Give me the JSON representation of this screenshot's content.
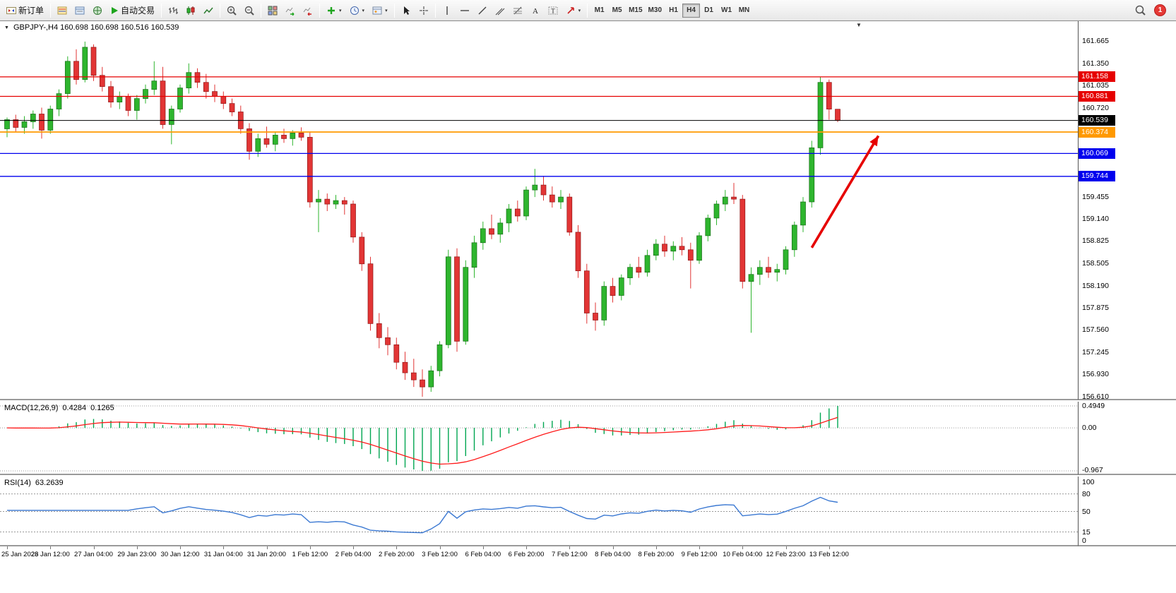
{
  "colors": {
    "bull": "#2eb52e",
    "bull_border": "#166d16",
    "bear": "#e23535",
    "bear_border": "#8f1414",
    "macd_hist": "#00a651",
    "macd_signal": "#ff1a1a",
    "rsi_line": "#3a78d2",
    "accent_red": "#e60000"
  },
  "toolbar": {
    "new_order_label": "新订单",
    "auto_trading_label": "自动交易",
    "timeframes": [
      "M1",
      "M5",
      "M15",
      "M30",
      "H1",
      "H4",
      "D1",
      "W1",
      "MN"
    ],
    "active_timeframe": "H4",
    "notification_count": "1"
  },
  "chart": {
    "title": "GBPJPY-,H4 160.698 160.698 160.516 160.539",
    "price_axis": [
      "161.665",
      "161.350",
      "161.035",
      "160.720",
      "159.455",
      "159.140",
      "158.825",
      "158.505",
      "158.190",
      "157.875",
      "157.560",
      "157.245",
      "156.930",
      "156.610"
    ],
    "hlines": [
      {
        "value": 161.158,
        "label": "161.158",
        "color": "#e60000",
        "width": 1.3
      },
      {
        "value": 160.881,
        "label": "160.881",
        "color": "#e60000",
        "width": 1.3
      },
      {
        "value": 160.539,
        "label": "160.539",
        "color": "#000000",
        "width": 1
      },
      {
        "value": 160.374,
        "label": "160.374",
        "color": "#ff9900",
        "width": 1.8
      },
      {
        "value": 160.069,
        "label": "160.069",
        "color": "#0000ee",
        "width": 1.3
      },
      {
        "value": 159.744,
        "label": "159.744",
        "color": "#0000ee",
        "width": 1.3
      }
    ],
    "arrow": {
      "from_bar": 93,
      "from_price": 158.73,
      "to_bar": 100.7,
      "to_price": 160.32,
      "color": "#e60000"
    }
  },
  "macd": {
    "name": "MACD(12,26,9)",
    "value_main": "0.4284",
    "value_signal": "0.1265",
    "fast": 12,
    "slow": 26,
    "signal": 9,
    "scale_max": 0.4949,
    "scale_min": -0.967,
    "axis_labels": [
      "0.4949",
      "0.00",
      "-0.967"
    ]
  },
  "rsi": {
    "name": "RSI(14)",
    "value": "63.2639",
    "period": 14,
    "levels": [
      80,
      50,
      15
    ],
    "axis_labels": [
      "100",
      "80",
      "50",
      "15",
      "0"
    ]
  },
  "time_axis": {
    "step": 5,
    "labels": [
      "25 Jan 2023",
      "26 Jan 12:00",
      "27 Jan 04:00",
      "29 Jan 23:00",
      "30 Jan 12:00",
      "31 Jan 04:00",
      "31 Jan 20:00",
      "1 Feb 12:00",
      "2 Feb 04:00",
      "2 Feb 20:00",
      "3 Feb 12:00",
      "6 Feb 04:00",
      "6 Feb 20:00",
      "7 Feb 12:00",
      "8 Feb 04:00",
      "8 Feb 20:00",
      "9 Feb 12:00",
      "10 Feb 04:00",
      "12 Feb 23:00",
      "13 Feb 12:00"
    ]
  },
  "chart_data": {
    "type": "candlestick",
    "symbol": "GBPJPY-",
    "timeframe": "H4",
    "ylim": [
      156.56,
      161.95
    ],
    "ohlc": [
      [
        160.42,
        160.58,
        160.3,
        160.55
      ],
      [
        160.55,
        160.62,
        160.38,
        160.44
      ],
      [
        160.44,
        160.6,
        160.35,
        160.52
      ],
      [
        160.52,
        160.68,
        160.42,
        160.63
      ],
      [
        160.63,
        160.72,
        160.28,
        160.4
      ],
      [
        160.4,
        160.75,
        160.35,
        160.7
      ],
      [
        160.7,
        160.98,
        160.6,
        160.92
      ],
      [
        160.92,
        161.45,
        160.85,
        161.38
      ],
      [
        161.38,
        161.55,
        161.05,
        161.12
      ],
      [
        161.12,
        161.66,
        161.08,
        161.58
      ],
      [
        161.58,
        161.62,
        161.1,
        161.18
      ],
      [
        161.18,
        161.3,
        160.95,
        161.02
      ],
      [
        161.02,
        161.1,
        160.72,
        160.8
      ],
      [
        160.8,
        160.95,
        160.7,
        160.88
      ],
      [
        160.88,
        160.92,
        160.6,
        160.68
      ],
      [
        160.68,
        160.9,
        160.55,
        160.85
      ],
      [
        160.85,
        161.05,
        160.78,
        160.98
      ],
      [
        160.98,
        161.38,
        160.9,
        161.1
      ],
      [
        161.1,
        161.3,
        160.42,
        160.48
      ],
      [
        160.48,
        160.75,
        160.2,
        160.7
      ],
      [
        160.7,
        161.05,
        160.65,
        161.0
      ],
      [
        161.0,
        161.35,
        160.92,
        161.22
      ],
      [
        161.22,
        161.28,
        161.0,
        161.08
      ],
      [
        161.08,
        161.2,
        160.85,
        160.95
      ],
      [
        160.95,
        161.05,
        160.8,
        160.88
      ],
      [
        160.88,
        160.95,
        160.7,
        160.78
      ],
      [
        160.78,
        160.85,
        160.6,
        160.66
      ],
      [
        160.66,
        160.75,
        160.35,
        160.42
      ],
      [
        160.42,
        160.5,
        159.98,
        160.1
      ],
      [
        160.1,
        160.35,
        160.02,
        160.28
      ],
      [
        160.28,
        160.45,
        160.15,
        160.2
      ],
      [
        160.2,
        160.38,
        160.1,
        160.33
      ],
      [
        160.33,
        160.42,
        160.22,
        160.28
      ],
      [
        160.28,
        160.4,
        160.18,
        160.36
      ],
      [
        160.36,
        160.44,
        160.25,
        160.3
      ],
      [
        160.3,
        160.38,
        159.3,
        159.38
      ],
      [
        159.38,
        159.55,
        158.95,
        159.42
      ],
      [
        159.42,
        159.5,
        159.25,
        159.35
      ],
      [
        159.35,
        159.48,
        159.28,
        159.4
      ],
      [
        159.4,
        159.45,
        159.2,
        159.35
      ],
      [
        159.35,
        159.4,
        158.8,
        158.88
      ],
      [
        158.88,
        158.95,
        158.4,
        158.5
      ],
      [
        158.5,
        158.6,
        157.55,
        157.65
      ],
      [
        157.65,
        157.8,
        157.3,
        157.45
      ],
      [
        157.45,
        157.6,
        157.2,
        157.35
      ],
      [
        157.35,
        157.45,
        157.0,
        157.1
      ],
      [
        157.1,
        157.25,
        156.85,
        156.95
      ],
      [
        156.95,
        157.15,
        156.75,
        156.85
      ],
      [
        156.85,
        157.0,
        156.61,
        156.75
      ],
      [
        156.75,
        157.05,
        156.68,
        156.98
      ],
      [
        156.98,
        157.4,
        156.9,
        157.35
      ],
      [
        157.35,
        158.7,
        157.3,
        158.6
      ],
      [
        158.6,
        158.72,
        157.25,
        157.4
      ],
      [
        157.4,
        158.55,
        157.35,
        158.45
      ],
      [
        158.45,
        158.9,
        158.3,
        158.8
      ],
      [
        158.8,
        159.1,
        158.7,
        159.0
      ],
      [
        159.0,
        159.2,
        158.85,
        158.92
      ],
      [
        158.92,
        159.15,
        158.8,
        159.08
      ],
      [
        159.08,
        159.35,
        158.95,
        159.28
      ],
      [
        159.28,
        159.4,
        159.1,
        159.18
      ],
      [
        159.18,
        159.6,
        159.12,
        159.55
      ],
      [
        159.55,
        159.85,
        159.45,
        159.62
      ],
      [
        159.62,
        159.75,
        159.4,
        159.48
      ],
      [
        159.48,
        159.6,
        159.3,
        159.38
      ],
      [
        159.38,
        159.55,
        159.28,
        159.45
      ],
      [
        159.45,
        159.5,
        158.9,
        158.95
      ],
      [
        158.95,
        159.05,
        158.3,
        158.4
      ],
      [
        158.4,
        158.5,
        157.65,
        157.8
      ],
      [
        157.8,
        157.95,
        157.55,
        157.7
      ],
      [
        157.7,
        158.25,
        157.62,
        158.18
      ],
      [
        158.18,
        158.3,
        157.95,
        158.05
      ],
      [
        158.05,
        158.35,
        157.98,
        158.3
      ],
      [
        158.3,
        158.5,
        158.2,
        158.45
      ],
      [
        158.45,
        158.6,
        158.3,
        158.38
      ],
      [
        158.38,
        158.7,
        158.32,
        158.62
      ],
      [
        158.62,
        158.85,
        158.55,
        158.78
      ],
      [
        158.78,
        158.9,
        158.6,
        158.68
      ],
      [
        158.68,
        158.82,
        158.55,
        158.75
      ],
      [
        158.75,
        158.88,
        158.62,
        158.7
      ],
      [
        158.7,
        158.8,
        158.15,
        158.55
      ],
      [
        158.55,
        158.95,
        158.5,
        158.9
      ],
      [
        158.9,
        159.2,
        158.82,
        159.15
      ],
      [
        159.15,
        159.4,
        159.05,
        159.35
      ],
      [
        159.35,
        159.55,
        159.25,
        159.45
      ],
      [
        159.45,
        159.65,
        159.35,
        159.42
      ],
      [
        159.42,
        159.48,
        158.15,
        158.25
      ],
      [
        158.25,
        158.45,
        157.52,
        158.35
      ],
      [
        158.35,
        158.55,
        158.2,
        158.45
      ],
      [
        158.45,
        158.6,
        158.3,
        158.38
      ],
      [
        158.38,
        158.5,
        158.25,
        158.42
      ],
      [
        158.42,
        158.75,
        158.35,
        158.7
      ],
      [
        158.7,
        159.1,
        158.6,
        159.05
      ],
      [
        159.05,
        159.45,
        158.95,
        159.38
      ],
      [
        159.38,
        160.25,
        159.3,
        160.15
      ],
      [
        160.15,
        161.16,
        160.05,
        161.08
      ],
      [
        161.08,
        161.12,
        160.55,
        160.7
      ],
      [
        160.698,
        160.698,
        160.516,
        160.539
      ]
    ]
  }
}
